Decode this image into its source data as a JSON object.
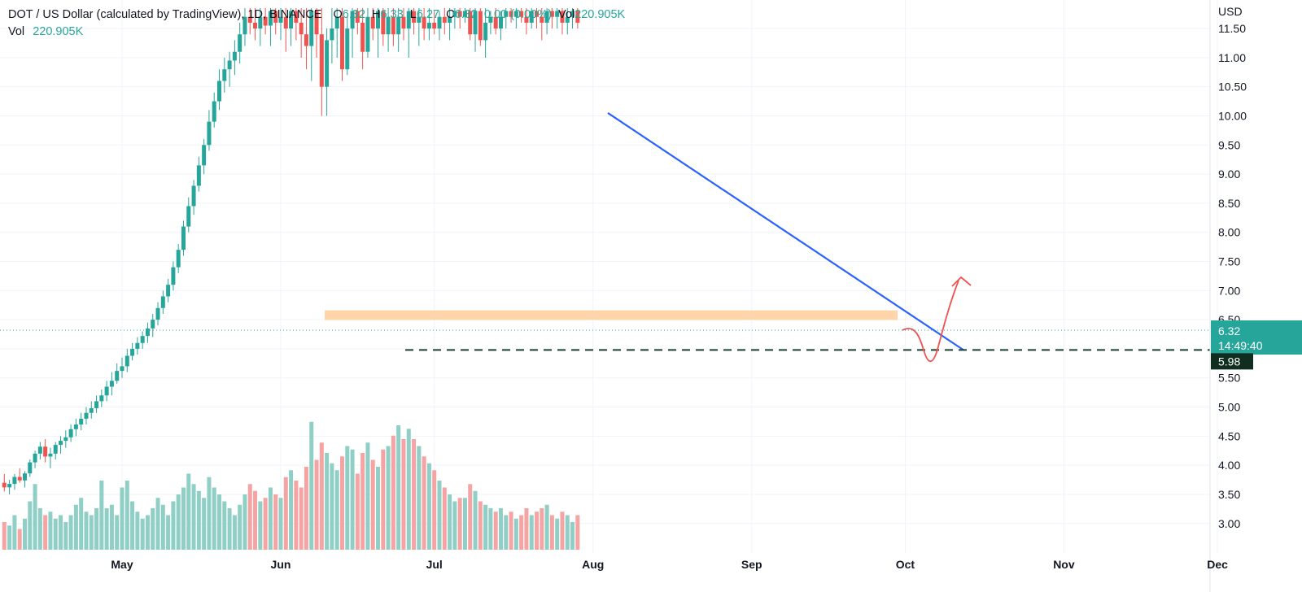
{
  "header": {
    "symbol": "DOT / US Dollar (calculated by TradingView), 1D, BINANCE",
    "open_label": "O",
    "open": "6.32",
    "high_label": "H",
    "high": "6.33",
    "low_label": "L",
    "low": "6.27",
    "close_label": "C",
    "close": "6.32",
    "change": "0.00 (0.00%)",
    "vol_label": "Vol",
    "vol": "220.905K"
  },
  "volume_legend": {
    "label": "Vol",
    "value": "220.905K"
  },
  "price_axis": {
    "currency": "USD"
  },
  "price_tag": {
    "price": "6.32",
    "countdown": "14:49:40"
  },
  "level_tag": {
    "price": "5.98"
  },
  "colors": {
    "up": "#26a69a",
    "down": "#ef5350",
    "up_volume": "#8fcfc6",
    "down_volume": "#f5a3a3",
    "trendline": "#2962ff",
    "support_zone": "#ffcc99",
    "dashed_level": "#1b4332",
    "projection": "#ef5350",
    "price_tag_bg": "#26a69a",
    "level_tag_bg": "#0f2e1f"
  },
  "chart_data": {
    "type": "candlestick",
    "y_axis": {
      "min": 2.55,
      "max": 11.85,
      "ticks": [
        3.0,
        3.5,
        4.0,
        4.5,
        5.0,
        5.5,
        6.0,
        6.5,
        7.0,
        7.5,
        8.0,
        8.5,
        9.0,
        9.5,
        10.0,
        10.5,
        11.0,
        11.5
      ]
    },
    "x_ticks": [
      "May",
      "Jun",
      "Jul",
      "Aug",
      "Sep",
      "Oct",
      "Nov",
      "Dec"
    ],
    "x_tick_dates": [
      "2021-05-01",
      "2021-06-01",
      "2021-07-01",
      "2021-08-01",
      "2021-09-01",
      "2021-10-01",
      "2021-11-01",
      "2021-12-01"
    ],
    "candles": {
      "start_date": "2021-04-01",
      "interval": "1d",
      "columns": [
        "open",
        "high",
        "low",
        "close",
        "volume"
      ],
      "rows": [
        [
          3.4,
          3.55,
          3.2,
          3.35,
          0.8
        ],
        [
          3.35,
          3.55,
          3.15,
          3.48,
          0.7
        ],
        [
          3.48,
          3.6,
          3.3,
          3.36,
          1.2
        ],
        [
          3.36,
          3.5,
          3.25,
          3.45,
          1.6
        ],
        [
          3.45,
          3.62,
          3.35,
          3.52,
          1.0
        ],
        [
          3.52,
          3.7,
          3.4,
          3.6,
          0.9
        ],
        [
          3.6,
          3.78,
          3.5,
          3.7,
          1.1
        ],
        [
          3.7,
          3.85,
          3.55,
          3.62,
          0.8
        ],
        [
          3.62,
          3.75,
          3.5,
          3.68,
          0.7
        ],
        [
          3.68,
          3.85,
          3.58,
          3.8,
          1.0
        ],
        [
          3.8,
          3.95,
          3.7,
          3.74,
          0.6
        ],
        [
          3.74,
          3.9,
          3.62,
          3.86,
          0.9
        ],
        [
          3.86,
          4.1,
          3.8,
          4.05,
          1.4
        ],
        [
          4.05,
          4.25,
          3.95,
          4.2,
          1.9
        ],
        [
          4.2,
          4.4,
          4.1,
          4.32,
          1.2
        ],
        [
          4.32,
          4.45,
          4.05,
          4.15,
          1.0
        ],
        [
          4.15,
          4.3,
          3.95,
          4.2,
          1.1
        ],
        [
          4.2,
          4.4,
          4.1,
          4.35,
          0.9
        ],
        [
          4.35,
          4.5,
          4.2,
          4.42,
          1.0
        ],
        [
          4.42,
          4.6,
          4.3,
          4.48,
          0.8
        ],
        [
          4.48,
          4.7,
          4.4,
          4.62,
          1.0
        ],
        [
          4.62,
          4.8,
          4.5,
          4.7,
          1.3
        ],
        [
          4.7,
          4.9,
          4.6,
          4.8,
          1.5
        ],
        [
          4.8,
          5.0,
          4.7,
          4.9,
          1.1
        ],
        [
          4.9,
          5.1,
          4.8,
          4.98,
          1.0
        ],
        [
          4.98,
          5.2,
          4.9,
          5.1,
          1.2
        ],
        [
          5.1,
          5.3,
          5.0,
          5.2,
          2.0
        ],
        [
          5.2,
          5.45,
          5.1,
          5.35,
          1.2
        ],
        [
          5.35,
          5.6,
          5.2,
          5.45,
          1.3
        ],
        [
          5.45,
          5.75,
          5.4,
          5.62,
          1.0
        ],
        [
          5.62,
          5.85,
          5.5,
          5.7,
          1.8
        ],
        [
          5.7,
          6.0,
          5.6,
          5.88,
          2.0
        ],
        [
          5.88,
          6.1,
          5.8,
          6.0,
          1.4
        ],
        [
          6.0,
          6.2,
          5.9,
          6.1,
          1.1
        ],
        [
          6.1,
          6.3,
          6.0,
          6.22,
          0.9
        ],
        [
          6.22,
          6.45,
          6.1,
          6.35,
          1.0
        ],
        [
          6.35,
          6.6,
          6.2,
          6.5,
          1.2
        ],
        [
          6.5,
          6.8,
          6.4,
          6.7,
          1.5
        ],
        [
          6.7,
          7.0,
          6.6,
          6.9,
          1.3
        ],
        [
          6.9,
          7.2,
          6.8,
          7.1,
          1.0
        ],
        [
          7.1,
          7.5,
          7.0,
          7.4,
          1.4
        ],
        [
          7.4,
          7.8,
          7.3,
          7.7,
          1.6
        ],
        [
          7.7,
          8.2,
          7.6,
          8.1,
          1.8
        ],
        [
          8.1,
          8.6,
          8.0,
          8.45,
          2.2
        ],
        [
          8.45,
          8.9,
          8.3,
          8.8,
          1.9
        ],
        [
          8.8,
          9.3,
          8.7,
          9.15,
          1.7
        ],
        [
          9.15,
          9.6,
          9.0,
          9.5,
          1.5
        ],
        [
          9.5,
          10.1,
          9.4,
          9.9,
          2.1
        ],
        [
          9.9,
          10.4,
          9.8,
          10.25,
          1.8
        ],
        [
          10.25,
          10.8,
          10.1,
          10.6,
          1.6
        ],
        [
          10.6,
          11.0,
          10.4,
          10.8,
          1.4
        ],
        [
          10.8,
          11.1,
          10.5,
          10.95,
          1.2
        ],
        [
          10.95,
          11.3,
          10.7,
          11.1,
          1.0
        ],
        [
          11.1,
          11.6,
          10.9,
          11.4,
          1.3
        ],
        [
          11.4,
          11.9,
          11.2,
          11.7,
          1.6
        ],
        [
          11.7,
          11.9,
          11.4,
          11.6,
          1.9
        ],
        [
          11.6,
          11.9,
          11.3,
          11.5,
          1.7
        ],
        [
          11.5,
          11.9,
          11.2,
          11.7,
          1.4
        ],
        [
          11.7,
          11.9,
          11.4,
          11.55,
          1.5
        ],
        [
          11.55,
          11.9,
          11.2,
          11.8,
          1.8
        ],
        [
          11.8,
          11.9,
          11.4,
          11.6,
          1.6
        ],
        [
          11.6,
          11.9,
          11.3,
          11.7,
          1.5
        ],
        [
          11.7,
          11.9,
          11.1,
          11.5,
          2.1
        ],
        [
          11.5,
          11.9,
          11.2,
          11.8,
          2.3
        ],
        [
          11.8,
          11.9,
          11.3,
          11.6,
          2.0
        ],
        [
          11.6,
          11.9,
          11.0,
          11.4,
          1.8
        ],
        [
          11.4,
          11.9,
          10.8,
          11.2,
          2.4
        ],
        [
          11.2,
          11.9,
          10.6,
          11.8,
          3.7
        ],
        [
          11.8,
          11.9,
          11.0,
          11.4,
          2.6
        ],
        [
          11.4,
          11.9,
          10.0,
          10.5,
          3.1
        ],
        [
          10.5,
          11.5,
          10.0,
          11.3,
          2.8
        ],
        [
          11.3,
          11.9,
          10.9,
          11.5,
          2.5
        ],
        [
          11.5,
          11.9,
          11.0,
          11.7,
          2.3
        ],
        [
          11.7,
          11.9,
          10.6,
          10.8,
          2.7
        ],
        [
          10.8,
          11.7,
          10.7,
          11.5,
          3.0
        ],
        [
          11.5,
          11.9,
          11.0,
          11.8,
          2.9
        ],
        [
          11.8,
          11.9,
          11.4,
          11.6,
          2.2
        ],
        [
          11.6,
          11.9,
          10.8,
          11.1,
          2.8
        ],
        [
          11.1,
          11.9,
          11.0,
          11.7,
          3.1
        ],
        [
          11.7,
          11.9,
          11.3,
          11.5,
          2.6
        ],
        [
          11.5,
          11.9,
          11.0,
          11.8,
          2.4
        ],
        [
          11.8,
          11.9,
          11.2,
          11.4,
          2.9
        ],
        [
          11.4,
          11.9,
          11.1,
          11.7,
          3.0
        ],
        [
          11.7,
          11.9,
          11.2,
          11.4,
          3.3
        ],
        [
          11.4,
          11.9,
          11.1,
          11.7,
          3.6
        ],
        [
          11.7,
          11.9,
          11.3,
          11.5,
          3.2
        ],
        [
          11.5,
          11.9,
          11.0,
          11.8,
          3.5
        ],
        [
          11.8,
          11.9,
          11.4,
          11.6,
          3.2
        ],
        [
          11.6,
          11.9,
          11.2,
          11.7,
          3.0
        ],
        [
          11.7,
          11.9,
          11.3,
          11.5,
          2.7
        ],
        [
          11.5,
          11.9,
          11.3,
          11.6,
          2.5
        ],
        [
          11.6,
          11.8,
          11.4,
          11.5,
          2.3
        ],
        [
          11.5,
          11.8,
          11.3,
          11.7,
          2.0
        ],
        [
          11.7,
          11.9,
          11.4,
          11.6,
          1.8
        ],
        [
          11.6,
          11.9,
          11.3,
          11.7,
          1.6
        ],
        [
          11.7,
          11.9,
          11.5,
          11.8,
          1.4
        ],
        [
          11.8,
          11.9,
          11.5,
          11.7,
          1.5
        ],
        [
          11.7,
          11.9,
          11.6,
          11.8,
          1.5
        ],
        [
          11.8,
          11.9,
          11.3,
          11.4,
          1.9
        ],
        [
          11.4,
          11.9,
          11.1,
          11.8,
          1.7
        ],
        [
          11.8,
          11.9,
          11.2,
          11.3,
          1.4
        ],
        [
          11.3,
          11.9,
          11.0,
          11.6,
          1.3
        ],
        [
          11.6,
          11.8,
          11.4,
          11.7,
          1.2
        ],
        [
          11.7,
          11.9,
          11.4,
          11.5,
          1.1
        ],
        [
          11.5,
          11.8,
          11.3,
          11.7,
          1.2
        ],
        [
          11.7,
          11.9,
          11.5,
          11.8,
          1.0
        ],
        [
          11.8,
          11.9,
          11.6,
          11.7,
          1.1
        ],
        [
          11.7,
          11.9,
          11.5,
          11.8,
          0.9
        ],
        [
          11.8,
          11.9,
          11.6,
          11.7,
          1.0
        ],
        [
          11.7,
          11.9,
          11.4,
          11.6,
          1.2
        ],
        [
          11.6,
          11.9,
          11.5,
          11.8,
          1.0
        ],
        [
          11.8,
          11.9,
          11.5,
          11.7,
          1.1
        ],
        [
          11.7,
          11.9,
          11.3,
          11.6,
          1.2
        ],
        [
          11.6,
          11.9,
          11.4,
          11.8,
          1.3
        ],
        [
          11.8,
          11.9,
          11.5,
          11.7,
          1.0
        ],
        [
          11.7,
          11.9,
          11.5,
          11.8,
          0.9
        ],
        [
          11.8,
          11.9,
          11.4,
          11.6,
          1.1
        ],
        [
          11.6,
          11.9,
          11.4,
          11.7,
          1.0
        ],
        [
          11.7,
          11.9,
          11.5,
          11.8,
          0.8
        ],
        [
          11.8,
          11.9,
          11.5,
          11.6,
          1.0
        ]
      ]
    }
  }
}
